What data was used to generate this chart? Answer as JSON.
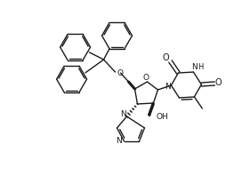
{
  "background": "#ffffff",
  "lc": "#1a1a1a",
  "lw": 1.0,
  "figsize": [
    2.81,
    2.16
  ],
  "dpi": 100,
  "xlim": [
    -1,
    13
  ],
  "ylim": [
    -0.5,
    10
  ]
}
